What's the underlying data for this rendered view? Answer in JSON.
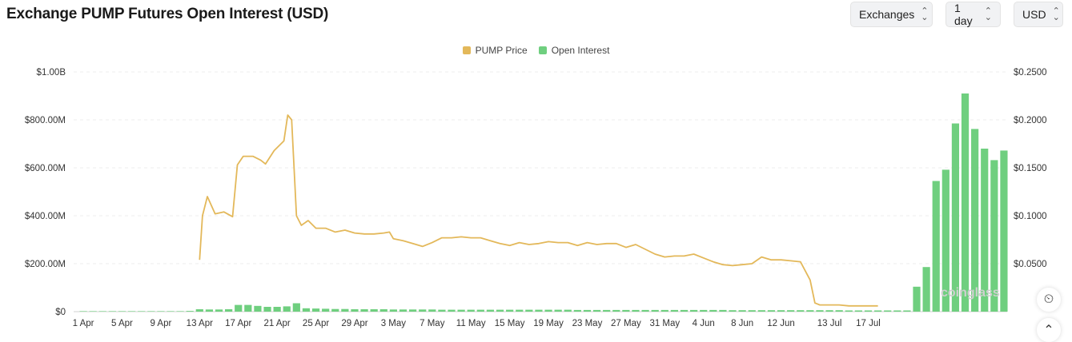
{
  "header": {
    "title": "Exchange PUMP Futures Open Interest (USD)",
    "controls": [
      {
        "label": "Exchanges",
        "icon": "chevron-updown-icon"
      },
      {
        "label": "1 day",
        "icon": "chevron-updown-icon"
      },
      {
        "label": "USD",
        "icon": "chevron-updown-icon"
      }
    ]
  },
  "colors": {
    "price": "#e3b85a",
    "oi": "#6fcf7f",
    "grid": "#ececec"
  },
  "chart_data": {
    "type": "bar+line",
    "legend": [
      {
        "name": "PUMP Price",
        "color": "#e3b85a"
      },
      {
        "name": "Open Interest",
        "color": "#6fcf7f"
      }
    ],
    "legend_position": "top-center",
    "grid": true,
    "y_left": {
      "ticks": [
        "$0",
        "$200.00M",
        "$400.00M",
        "$600.00M",
        "$800.00M",
        "$1.00B"
      ],
      "range": [
        0,
        1000000000
      ]
    },
    "y_right": {
      "ticks": [
        "$0.0500",
        "$0.1000",
        "$0.1500",
        "$0.2000",
        "$0.2500"
      ],
      "range": [
        0.0,
        0.25
      ]
    },
    "x_ticks": [
      "1 Apr",
      "5 Apr",
      "9 Apr",
      "13 Apr",
      "17 Apr",
      "21 Apr",
      "25 Apr",
      "29 Apr",
      "3 May",
      "7 May",
      "11 May",
      "15 May",
      "19 May",
      "23 May",
      "27 May",
      "31 May",
      "4 Jun",
      "8 Jun",
      "12 Jun",
      "13 Jul",
      "17 Jul"
    ],
    "series": [
      {
        "name": "Open Interest",
        "unit": "USD",
        "values": [
          2,
          2,
          2,
          2,
          2,
          2,
          2,
          2,
          2,
          2,
          2,
          3,
          10,
          9,
          9,
          10,
          28,
          28,
          24,
          20,
          20,
          22,
          35,
          14,
          13,
          12,
          11,
          11,
          10,
          10,
          10,
          10,
          9,
          9,
          9,
          9,
          9,
          8,
          8,
          8,
          8,
          8,
          8,
          8,
          8,
          8,
          8,
          8,
          8,
          8,
          8,
          7,
          7,
          7,
          7,
          7,
          7,
          7,
          7,
          7,
          7,
          7,
          7,
          7,
          7,
          7,
          7,
          6,
          6,
          6,
          6,
          6,
          6,
          6,
          6,
          6,
          6,
          6,
          6,
          5,
          5,
          5,
          5,
          5,
          5,
          5,
          104,
          186,
          545,
          592,
          785,
          910,
          762,
          680,
          632,
          672
        ]
      },
      {
        "name": "PUMP Price",
        "unit": "USD",
        "points": [
          [
            12,
            0.054
          ],
          [
            12.3,
            0.1
          ],
          [
            12.8,
            0.12
          ],
          [
            13.6,
            0.102
          ],
          [
            14.5,
            0.104
          ],
          [
            15.4,
            0.099
          ],
          [
            15.9,
            0.153
          ],
          [
            16.5,
            0.162
          ],
          [
            17.5,
            0.162
          ],
          [
            18.3,
            0.158
          ],
          [
            18.8,
            0.154
          ],
          [
            19.7,
            0.168
          ],
          [
            20.7,
            0.178
          ],
          [
            21.1,
            0.205
          ],
          [
            21.5,
            0.2
          ],
          [
            22,
            0.1
          ],
          [
            22.5,
            0.09
          ],
          [
            23.2,
            0.095
          ],
          [
            24,
            0.087
          ],
          [
            25,
            0.087
          ],
          [
            26,
            0.083
          ],
          [
            27,
            0.085
          ],
          [
            28,
            0.082
          ],
          [
            29,
            0.081
          ],
          [
            30,
            0.081
          ],
          [
            31,
            0.082
          ],
          [
            31.6,
            0.083
          ],
          [
            32,
            0.076
          ],
          [
            33,
            0.074
          ],
          [
            34,
            0.071
          ],
          [
            35,
            0.068
          ],
          [
            36,
            0.072
          ],
          [
            37,
            0.077
          ],
          [
            38,
            0.077
          ],
          [
            39,
            0.078
          ],
          [
            40,
            0.077
          ],
          [
            41,
            0.077
          ],
          [
            42,
            0.074
          ],
          [
            43,
            0.071
          ],
          [
            44,
            0.069
          ],
          [
            45,
            0.072
          ],
          [
            46,
            0.07
          ],
          [
            47,
            0.071
          ],
          [
            48,
            0.073
          ],
          [
            49,
            0.072
          ],
          [
            50,
            0.072
          ],
          [
            51,
            0.069
          ],
          [
            52,
            0.072
          ],
          [
            53,
            0.07
          ],
          [
            54,
            0.071
          ],
          [
            55,
            0.071
          ],
          [
            56,
            0.067
          ],
          [
            57,
            0.07
          ],
          [
            58,
            0.065
          ],
          [
            59,
            0.06
          ],
          [
            60,
            0.057
          ],
          [
            61,
            0.058
          ],
          [
            62,
            0.058
          ],
          [
            63,
            0.06
          ],
          [
            64,
            0.056
          ],
          [
            65,
            0.052
          ],
          [
            66,
            0.049
          ],
          [
            67,
            0.048
          ],
          [
            68,
            0.049
          ],
          [
            69,
            0.05
          ],
          [
            70,
            0.057
          ],
          [
            71,
            0.054
          ],
          [
            72,
            0.054
          ],
          [
            73,
            0.053
          ],
          [
            74,
            0.052
          ],
          [
            75,
            0.033
          ],
          [
            75.5,
            0.009
          ],
          [
            76,
            0.007
          ],
          [
            77,
            0.007
          ],
          [
            78,
            0.007
          ],
          [
            79,
            0.006
          ],
          [
            80,
            0.006
          ],
          [
            81,
            0.006
          ],
          [
            82,
            0.006
          ]
        ]
      }
    ]
  },
  "watermark": "coinglass",
  "fab": {
    "top_icon": "alert-clock-icon",
    "bottom_icon": "chevron-up-icon"
  }
}
